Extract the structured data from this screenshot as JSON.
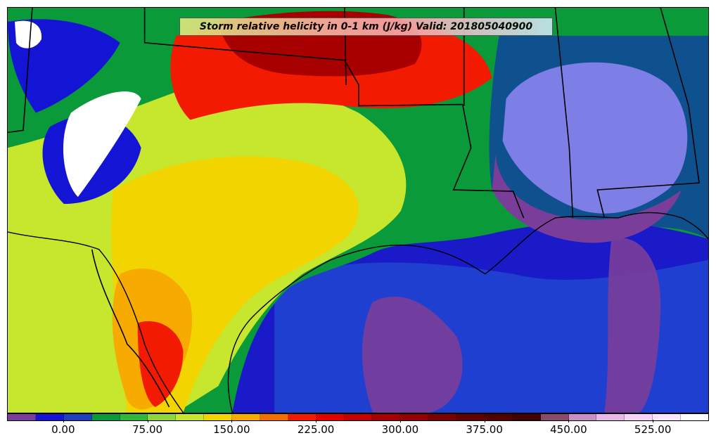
{
  "title": "Storm relative helicity in 0-1 km (J/kg) Valid: 201805040900",
  "colorbar": {
    "colors": [
      "#7a3e9a",
      "#1414d4",
      "#1e40c0",
      "#0a9a3a",
      "#2fb83a",
      "#8fd63a",
      "#c7e62e",
      "#f2d500",
      "#f7aa00",
      "#f26e00",
      "#f21a00",
      "#e00000",
      "#c40000",
      "#a80000",
      "#940000",
      "#7a0000",
      "#640000",
      "#520000",
      "#420000",
      "#8a4a6a",
      "#c890c0",
      "#e8b8e8",
      "#f5d4f5",
      "#fae6fa",
      "#ffffff"
    ],
    "tick_labels": [
      "0.00",
      "75.00",
      "150.00",
      "225.00",
      "300.00",
      "375.00",
      "450.00",
      "525.00"
    ],
    "tick_values": [
      0,
      75,
      150,
      225,
      300,
      375,
      450,
      525
    ],
    "range": [
      -50,
      575
    ]
  },
  "map": {
    "ocean_color": "#1a1ac8",
    "land_colors": {
      "low": "#0a9a3a",
      "mid": "#c7e62e",
      "high": "#f2d500",
      "hot": "#f21a00",
      "extreme": "#a80000",
      "negative": "#7a3e9a",
      "white": "#ffffff"
    }
  }
}
